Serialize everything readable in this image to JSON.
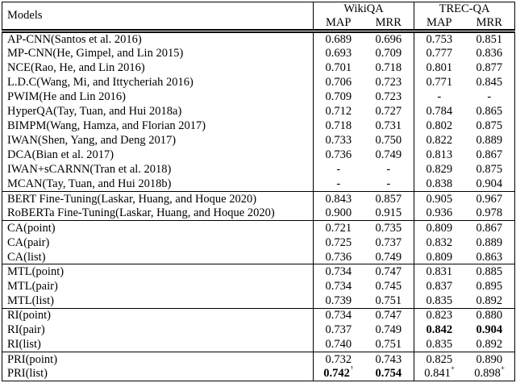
{
  "table": {
    "type": "table",
    "header": {
      "models_label": "Models",
      "groups": [
        {
          "label": "WikiQA",
          "cols": [
            "MAP",
            "MRR"
          ]
        },
        {
          "label": "TREC-QA",
          "cols": [
            "MAP",
            "MRR"
          ]
        }
      ]
    },
    "sections": [
      {
        "rows": [
          {
            "model": "AP-CNN(Santos et al. 2016)",
            "cells": [
              "0.689",
              "0.696",
              "0.753",
              "0.851"
            ]
          },
          {
            "model": "MP-CNN(He, Gimpel, and Lin 2015)",
            "cells": [
              "0.693",
              "0.709",
              "0.777",
              "0.836"
            ]
          },
          {
            "model": "NCE(Rao, He, and Lin 2016)",
            "cells": [
              "0.701",
              "0.718",
              "0.801",
              "0.877"
            ]
          },
          {
            "model": "L.D.C(Wang, Mi, and Ittycheriah 2016)",
            "cells": [
              "0.706",
              "0.723",
              "0.771",
              "0.845"
            ]
          },
          {
            "model": "PWIM(He and Lin 2016)",
            "cells": [
              "0.709",
              "0.723",
              "-",
              "-"
            ]
          },
          {
            "model": "HyperQA(Tay, Tuan, and Hui 2018a)",
            "cells": [
              "0.712",
              "0.727",
              "0.784",
              "0.865"
            ]
          },
          {
            "model": "BIMPM(Wang, Hamza, and Florian 2017)",
            "cells": [
              "0.718",
              "0.731",
              "0.802",
              "0.875"
            ]
          },
          {
            "model": "IWAN(Shen, Yang, and Deng 2017)",
            "cells": [
              "0.733",
              "0.750",
              "0.822",
              "0.889"
            ]
          },
          {
            "model": "DCA(Bian et al. 2017)",
            "cells": [
              "0.736",
              "0.749",
              "0.813",
              "0.867"
            ]
          },
          {
            "model": "IWAN+sCARNN(Tran et al. 2018)",
            "cells": [
              "-",
              "-",
              "0.829",
              "0.875"
            ]
          },
          {
            "model": "MCAN(Tay, Tuan, and Hui 2018b)",
            "cells": [
              "-",
              "-",
              "0.838",
              "0.904"
            ]
          }
        ]
      },
      {
        "rows": [
          {
            "model": "BERT Fine-Tuning(Laskar, Huang, and Hoque 2020)",
            "cells": [
              "0.843",
              "0.857",
              "0.905",
              "0.967"
            ]
          },
          {
            "model": "RoBERTa Fine-Tuning(Laskar, Huang, and Hoque 2020)",
            "cells": [
              "0.900",
              "0.915",
              "0.936",
              "0.978"
            ]
          }
        ]
      },
      {
        "rows": [
          {
            "model": "CA(point)",
            "cells": [
              "0.721",
              "0.735",
              "0.809",
              "0.867"
            ]
          },
          {
            "model": "CA(pair)",
            "cells": [
              "0.725",
              "0.737",
              "0.832",
              "0.889"
            ]
          },
          {
            "model": "CA(list)",
            "cells": [
              "0.736",
              "0.749",
              "0.809",
              "0.863"
            ]
          }
        ]
      },
      {
        "rows": [
          {
            "model": "MTL(point)",
            "cells": [
              "0.734",
              "0.747",
              "0.831",
              "0.885"
            ]
          },
          {
            "model": "MTL(pair)",
            "cells": [
              "0.734",
              "0.745",
              "0.837",
              "0.895"
            ]
          },
          {
            "model": "MTL(list)",
            "cells": [
              "0.739",
              "0.751",
              "0.835",
              "0.892"
            ]
          }
        ]
      },
      {
        "rows": [
          {
            "model": "RI(point)",
            "cells": [
              "0.734",
              "0.747",
              "0.823",
              "0.880"
            ]
          },
          {
            "model": "RI(pair)",
            "cells": [
              "0.737",
              "0.749",
              {
                "v": "0.842",
                "b": true
              },
              {
                "v": "0.904",
                "b": true
              }
            ]
          },
          {
            "model": "RI(list)",
            "cells": [
              "0.740",
              "0.751",
              "0.835",
              "0.892"
            ]
          }
        ]
      },
      {
        "rows": [
          {
            "model": "PRI(point)",
            "cells": [
              "0.732",
              "0.743",
              "0.825",
              "0.890"
            ]
          },
          {
            "model": "PRI(list)",
            "cells": [
              {
                "v": "0.742",
                "b": true,
                "sup": "†"
              },
              {
                "v": "0.754",
                "b": true
              },
              {
                "v": "0.841",
                "sup": "‡"
              },
              {
                "v": "0.898",
                "sup": "‡"
              }
            ]
          }
        ]
      }
    ]
  },
  "colors": {
    "text": "#000000",
    "border": "#000000",
    "background": "#ffffff"
  }
}
